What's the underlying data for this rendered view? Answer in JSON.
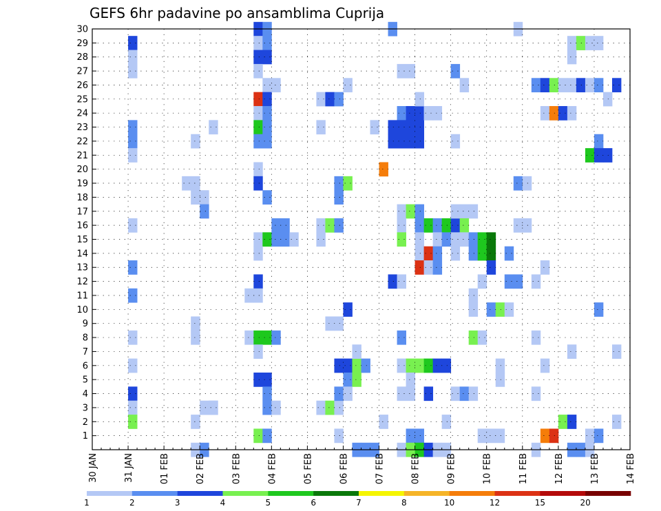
{
  "chart_data": {
    "type": "heatmap",
    "title": "GEFS 6hr padavine po ansamblima Cuprija",
    "x_start": "2020-01-30 00:00",
    "x_end": "2020-02-14 00:00",
    "x_tick_labels": [
      "30 JAN",
      "31 JAN",
      "01 FEB",
      "02 FEB",
      "03 FEB",
      "04 FEB",
      "05 FEB",
      "06 FEB",
      "07 FEB",
      "08 FEB",
      "09 FEB",
      "10 FEB",
      "11 FEB",
      "12 FEB",
      "13 FEB",
      "14 FEB"
    ],
    "y_ticks": [
      1,
      2,
      3,
      4,
      5,
      6,
      7,
      8,
      9,
      10,
      11,
      12,
      13,
      14,
      15,
      16,
      17,
      18,
      19,
      20,
      21,
      22,
      23,
      24,
      25,
      26,
      27,
      28,
      29,
      30
    ],
    "ylim": [
      0,
      30
    ],
    "grid": true,
    "legend": {
      "placement": "bottom",
      "levels": [
        1,
        2,
        3,
        4,
        5,
        6,
        7,
        8,
        10,
        12,
        15,
        20
      ],
      "colors": [
        "#b4c8f5",
        "#5a8ef0",
        "#1e46dc",
        "#78f050",
        "#1ec81e",
        "#0a780a",
        "#f5f500",
        "#f5b428",
        "#f57d0a",
        "#dc3214",
        "#b40a0a",
        "#780000"
      ]
    },
    "cells_note": "[member, step, class] where step = 6-hour interval index from 30 JAN 00z and class indexes legend.colors",
    "cells": [
      [
        29,
        4,
        2
      ],
      [
        28,
        4,
        0
      ],
      [
        27,
        4,
        0
      ],
      [
        23,
        4,
        1
      ],
      [
        22,
        4,
        1
      ],
      [
        21,
        4,
        0
      ],
      [
        16,
        4,
        0
      ],
      [
        13,
        4,
        1
      ],
      [
        11,
        4,
        1
      ],
      [
        8,
        4,
        0
      ],
      [
        6,
        4,
        0
      ],
      [
        4,
        4,
        2
      ],
      [
        3,
        4,
        0
      ],
      [
        2,
        4,
        3
      ],
      [
        22,
        11,
        0
      ],
      [
        19,
        10,
        0
      ],
      [
        19,
        11,
        0
      ],
      [
        18,
        11,
        0
      ],
      [
        18,
        12,
        0
      ],
      [
        17,
        12,
        1
      ],
      [
        9,
        11,
        0
      ],
      [
        8,
        11,
        0
      ],
      [
        2,
        11,
        0
      ],
      [
        0,
        11,
        0
      ],
      [
        0,
        12,
        1
      ],
      [
        3,
        12,
        0
      ],
      [
        3,
        13,
        0
      ],
      [
        23,
        13,
        0
      ],
      [
        30,
        18,
        2
      ],
      [
        30,
        19,
        1
      ],
      [
        29,
        18,
        0
      ],
      [
        29,
        19,
        1
      ],
      [
        28,
        18,
        2
      ],
      [
        28,
        19,
        2
      ],
      [
        27,
        18,
        0
      ],
      [
        26,
        19,
        0
      ],
      [
        26,
        20,
        0
      ],
      [
        25,
        18,
        9
      ],
      [
        25,
        19,
        2
      ],
      [
        24,
        18,
        0
      ],
      [
        24,
        19,
        1
      ],
      [
        23,
        18,
        4
      ],
      [
        23,
        19,
        1
      ],
      [
        22,
        18,
        1
      ],
      [
        22,
        19,
        1
      ],
      [
        20,
        18,
        0
      ],
      [
        19,
        18,
        2
      ],
      [
        18,
        19,
        1
      ],
      [
        15,
        18,
        0
      ],
      [
        15,
        19,
        4
      ],
      [
        14,
        18,
        0
      ],
      [
        12,
        18,
        2
      ],
      [
        11,
        17,
        0
      ],
      [
        11,
        18,
        0
      ],
      [
        8,
        17,
        0
      ],
      [
        8,
        18,
        4
      ],
      [
        8,
        19,
        4
      ],
      [
        8,
        20,
        1
      ],
      [
        7,
        18,
        0
      ],
      [
        5,
        18,
        2
      ],
      [
        5,
        19,
        2
      ],
      [
        4,
        19,
        1
      ],
      [
        3,
        19,
        1
      ],
      [
        3,
        20,
        0
      ],
      [
        1,
        18,
        3
      ],
      [
        1,
        19,
        1
      ],
      [
        16,
        20,
        1
      ],
      [
        16,
        21,
        1
      ],
      [
        15,
        20,
        1
      ],
      [
        15,
        21,
        1
      ],
      [
        15,
        22,
        0
      ],
      [
        3,
        13,
        0
      ],
      [
        25,
        25,
        0
      ],
      [
        25,
        26,
        2
      ],
      [
        25,
        27,
        1
      ],
      [
        23,
        25,
        0
      ],
      [
        16,
        25,
        0
      ],
      [
        16,
        26,
        3
      ],
      [
        16,
        27,
        1
      ],
      [
        15,
        25,
        0
      ],
      [
        9,
        26,
        0
      ],
      [
        9,
        27,
        0
      ],
      [
        3,
        25,
        0
      ],
      [
        3,
        26,
        3
      ],
      [
        3,
        27,
        0
      ],
      [
        26,
        28,
        0
      ],
      [
        19,
        27,
        1
      ],
      [
        19,
        28,
        3
      ],
      [
        18,
        27,
        1
      ],
      [
        10,
        28,
        2
      ],
      [
        6,
        27,
        2
      ],
      [
        6,
        28,
        2
      ],
      [
        6,
        29,
        3
      ],
      [
        6,
        30,
        1
      ],
      [
        5,
        28,
        1
      ],
      [
        5,
        29,
        3
      ],
      [
        4,
        27,
        1
      ],
      [
        4,
        28,
        0
      ],
      [
        1,
        27,
        0
      ],
      [
        7,
        29,
        0
      ],
      [
        0,
        29,
        1
      ],
      [
        0,
        30,
        1
      ],
      [
        0,
        31,
        1
      ],
      [
        23,
        31,
        0
      ],
      [
        20,
        32,
        8
      ],
      [
        30,
        33,
        1
      ],
      [
        27,
        34,
        0
      ],
      [
        27,
        35,
        0
      ],
      [
        24,
        34,
        1
      ],
      [
        24,
        35,
        2
      ],
      [
        24,
        36,
        2
      ],
      [
        23,
        33,
        2
      ],
      [
        23,
        34,
        2
      ],
      [
        23,
        35,
        2
      ],
      [
        23,
        36,
        2
      ],
      [
        22,
        33,
        2
      ],
      [
        22,
        34,
        2
      ],
      [
        22,
        35,
        2
      ],
      [
        22,
        36,
        2
      ],
      [
        24,
        37,
        0
      ],
      [
        24,
        38,
        0
      ],
      [
        25,
        36,
        0
      ],
      [
        17,
        34,
        0
      ],
      [
        17,
        35,
        3
      ],
      [
        17,
        36,
        1
      ],
      [
        16,
        34,
        0
      ],
      [
        16,
        36,
        1
      ],
      [
        16,
        37,
        4
      ],
      [
        16,
        38,
        1
      ],
      [
        16,
        39,
        4
      ],
      [
        16,
        40,
        2
      ],
      [
        15,
        34,
        3
      ],
      [
        15,
        36,
        0
      ],
      [
        15,
        38,
        0
      ],
      [
        15,
        39,
        1
      ],
      [
        14,
        36,
        0
      ],
      [
        14,
        37,
        9
      ],
      [
        14,
        38,
        1
      ],
      [
        13,
        36,
        9
      ],
      [
        13,
        37,
        0
      ],
      [
        13,
        38,
        1
      ],
      [
        12,
        33,
        2
      ],
      [
        12,
        34,
        0
      ],
      [
        8,
        34,
        1
      ],
      [
        6,
        34,
        0
      ],
      [
        6,
        35,
        3
      ],
      [
        6,
        36,
        3
      ],
      [
        6,
        37,
        4
      ],
      [
        6,
        38,
        2
      ],
      [
        6,
        39,
        2
      ],
      [
        5,
        35,
        0
      ],
      [
        4,
        34,
        0
      ],
      [
        4,
        35,
        0
      ],
      [
        4,
        37,
        2
      ],
      [
        2,
        32,
        0
      ],
      [
        2,
        39,
        0
      ],
      [
        1,
        35,
        1
      ],
      [
        1,
        36,
        1
      ],
      [
        0,
        34,
        0
      ],
      [
        0,
        35,
        3
      ],
      [
        0,
        36,
        4
      ],
      [
        0,
        37,
        2
      ],
      [
        0,
        38,
        0
      ],
      [
        0,
        39,
        0
      ],
      [
        27,
        40,
        1
      ],
      [
        26,
        41,
        0
      ],
      [
        22,
        40,
        0
      ],
      [
        17,
        40,
        0
      ],
      [
        17,
        41,
        0
      ],
      [
        17,
        42,
        0
      ],
      [
        16,
        41,
        3
      ],
      [
        15,
        40,
        0
      ],
      [
        15,
        41,
        0
      ],
      [
        15,
        42,
        1
      ],
      [
        15,
        43,
        4
      ],
      [
        15,
        44,
        5
      ],
      [
        14,
        40,
        0
      ],
      [
        14,
        42,
        1
      ],
      [
        14,
        43,
        4
      ],
      [
        14,
        44,
        5
      ],
      [
        13,
        44,
        2
      ],
      [
        10,
        42,
        0
      ],
      [
        10,
        44,
        1
      ],
      [
        10,
        45,
        3
      ],
      [
        10,
        46,
        0
      ],
      [
        12,
        43,
        0
      ],
      [
        12,
        46,
        1
      ],
      [
        11,
        42,
        0
      ],
      [
        8,
        42,
        3
      ],
      [
        8,
        43,
        0
      ],
      [
        6,
        45,
        0
      ],
      [
        5,
        45,
        0
      ],
      [
        4,
        40,
        0
      ],
      [
        4,
        41,
        1
      ],
      [
        4,
        42,
        0
      ],
      [
        1,
        43,
        0
      ],
      [
        1,
        44,
        0
      ],
      [
        1,
        45,
        0
      ],
      [
        30,
        47,
        0
      ],
      [
        26,
        49,
        1
      ],
      [
        26,
        50,
        2
      ],
      [
        26,
        51,
        3
      ],
      [
        26,
        52,
        0
      ],
      [
        26,
        53,
        0
      ],
      [
        26,
        54,
        2
      ],
      [
        26,
        55,
        0
      ],
      [
        26,
        58,
        2
      ],
      [
        24,
        50,
        0
      ],
      [
        24,
        51,
        8
      ],
      [
        24,
        52,
        2
      ],
      [
        24,
        53,
        0
      ],
      [
        19,
        47,
        1
      ],
      [
        19,
        48,
        0
      ],
      [
        16,
        47,
        0
      ],
      [
        16,
        48,
        0
      ],
      [
        14,
        46,
        1
      ],
      [
        13,
        50,
        0
      ],
      [
        12,
        47,
        1
      ],
      [
        12,
        49,
        0
      ],
      [
        10,
        56,
        1
      ],
      [
        8,
        49,
        0
      ],
      [
        7,
        53,
        0
      ],
      [
        7,
        58,
        0
      ],
      [
        6,
        50,
        0
      ],
      [
        4,
        49,
        0
      ],
      [
        2,
        52,
        3
      ],
      [
        2,
        53,
        2
      ],
      [
        1,
        50,
        8
      ],
      [
        1,
        51,
        9
      ],
      [
        0,
        49,
        0
      ],
      [
        29,
        53,
        0
      ],
      [
        29,
        54,
        3
      ],
      [
        29,
        55,
        0
      ],
      [
        29,
        56,
        0
      ],
      [
        28,
        53,
        0
      ],
      [
        26,
        56,
        1
      ],
      [
        25,
        57,
        0
      ],
      [
        22,
        56,
        1
      ],
      [
        21,
        55,
        4
      ],
      [
        21,
        56,
        2
      ],
      [
        21,
        57,
        2
      ],
      [
        2,
        58,
        0
      ],
      [
        1,
        55,
        0
      ],
      [
        1,
        56,
        1
      ],
      [
        0,
        53,
        1
      ],
      [
        0,
        54,
        1
      ],
      [
        0,
        55,
        0
      ]
    ]
  }
}
